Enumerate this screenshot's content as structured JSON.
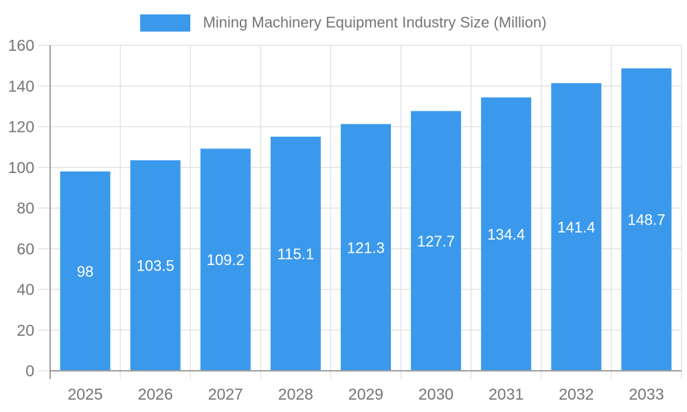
{
  "chart_data": {
    "type": "bar",
    "title": "Mining Machinery Equipment Industry Size (Million)",
    "legend": [
      "Mining Machinery Equipment Industry Size (Million)"
    ],
    "legend_position": "top-center",
    "categories": [
      "2025",
      "2026",
      "2027",
      "2028",
      "2029",
      "2030",
      "2031",
      "2032",
      "2033"
    ],
    "values": [
      98,
      103.5,
      109.2,
      115.1,
      121.3,
      127.7,
      134.4,
      141.4,
      148.7
    ],
    "value_labels": [
      "98",
      "103.5",
      "109.2",
      "115.1",
      "121.3",
      "127.7",
      "134.4",
      "141.4",
      "148.7"
    ],
    "value_label_position": "inside-center",
    "xlabel": "",
    "ylabel": "",
    "ylim": [
      0,
      160
    ],
    "ytick_step": 20,
    "yticks": [
      0,
      20,
      40,
      60,
      80,
      100,
      120,
      140,
      160
    ],
    "grid": "horizontal-and-vertical",
    "colors": {
      "bar": "#3B99EC",
      "value_label": "#ffffff",
      "axis_text": "#757575",
      "grid_line": "#e3e3e3",
      "axis_line": "#9e9e9e",
      "background": "#ffffff"
    }
  }
}
